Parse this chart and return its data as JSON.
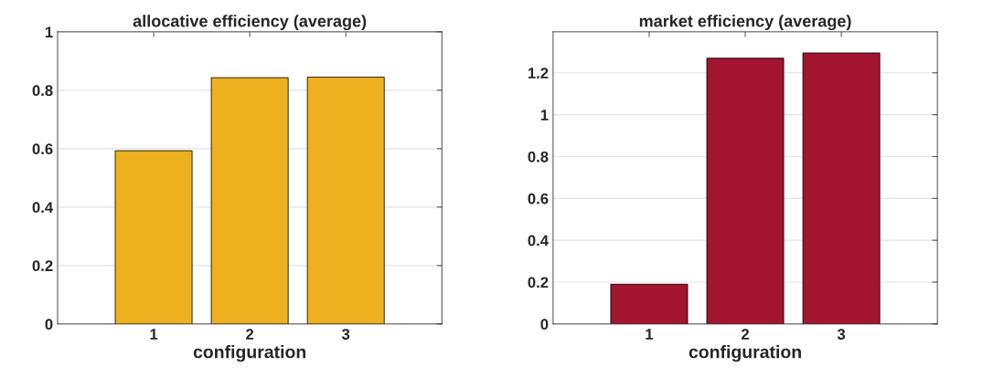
{
  "chart_data": [
    {
      "type": "bar",
      "title": "allocative efficiency (average)",
      "xlabel": "configuration",
      "x": [
        1,
        2,
        3
      ],
      "values": [
        0.593,
        0.843,
        0.845
      ],
      "color": "#edb120",
      "xlim": [
        0,
        4
      ],
      "xticks": [
        1,
        2,
        3
      ],
      "ylim": [
        0,
        1
      ],
      "yticks": [
        0,
        0.2,
        0.4,
        0.6,
        0.8,
        1
      ],
      "grid": "y",
      "legend": false
    },
    {
      "type": "bar",
      "title": "market efficiency (average)",
      "xlabel": "configuration",
      "x": [
        1,
        2,
        3
      ],
      "values": [
        0.19,
        1.27,
        1.295
      ],
      "color": "#a2142f",
      "xlim": [
        0,
        4
      ],
      "xticks": [
        1,
        2,
        3
      ],
      "ylim": [
        0,
        1.396
      ],
      "yticks": [
        0,
        0.2,
        0.4,
        0.6,
        0.8,
        1,
        1.2
      ],
      "grid": "y",
      "legend": false
    }
  ]
}
